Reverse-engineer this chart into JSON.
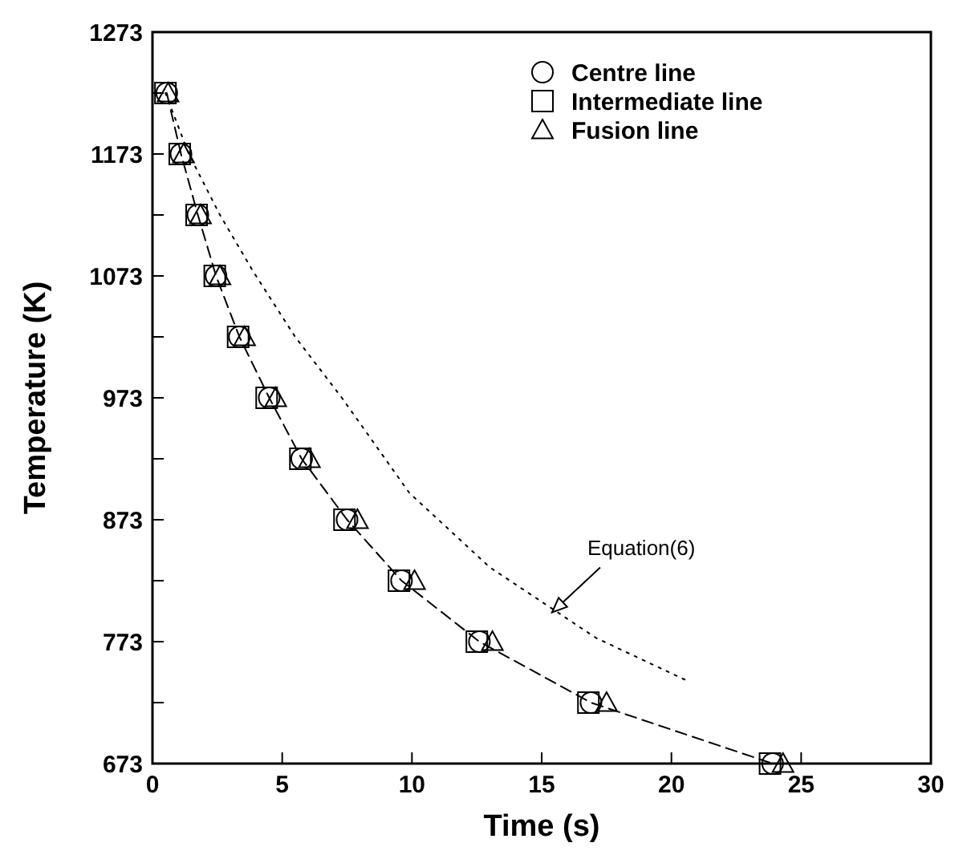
{
  "chart_data": {
    "type": "scatter",
    "xlabel": "Time (s)",
    "ylabel": "Temperature (K)",
    "xlim": [
      0,
      30
    ],
    "ylim": [
      673,
      1273
    ],
    "xticks": [
      0,
      5,
      10,
      15,
      20,
      25,
      30
    ],
    "yticks": [
      673,
      {
        "value": 723,
        "label": null
      },
      773,
      {
        "value": 823,
        "label": null
      },
      873,
      {
        "value": 923,
        "label": null
      },
      973,
      {
        "value": 1023,
        "label": null
      },
      1073,
      {
        "value": 1123,
        "label": null
      },
      1173,
      {
        "value": 1223,
        "label": null
      },
      1273
    ],
    "legend": "top right",
    "grid": false,
    "annotations": [
      {
        "text": "Equation(6)",
        "x": 15.4,
        "y": 797
      }
    ],
    "series": [
      {
        "name": "Centre line",
        "marker": "circle",
        "color": "#000000",
        "x": [
          0.55,
          1.1,
          1.75,
          2.45,
          3.35,
          4.5,
          5.75,
          7.5,
          9.6,
          12.6,
          16.9,
          23.9
        ],
        "values": [
          1223,
          1173,
          1123,
          1073,
          1023,
          973,
          923,
          873,
          823,
          773,
          723,
          673
        ]
      },
      {
        "name": "Intermediate line",
        "marker": "square",
        "color": "#000000",
        "x": [
          0.5,
          1.05,
          1.7,
          2.4,
          3.3,
          4.4,
          5.7,
          7.4,
          9.5,
          12.5,
          16.8,
          23.8
        ],
        "values": [
          1223,
          1173,
          1123,
          1073,
          1023,
          973,
          923,
          873,
          823,
          773,
          723,
          673
        ]
      },
      {
        "name": "Fusion line",
        "marker": "triangle",
        "color": "#000000",
        "x": [
          0.6,
          1.2,
          1.85,
          2.6,
          3.55,
          4.75,
          6.05,
          7.9,
          10.1,
          13.1,
          17.5,
          24.3
        ],
        "values": [
          1223,
          1173,
          1123,
          1073,
          1023,
          973,
          923,
          873,
          823,
          773,
          723,
          673
        ]
      },
      {
        "type": "line",
        "line_style": "dashed",
        "marker": "none",
        "color": "#000000",
        "x": [
          0.55,
          1.1,
          1.75,
          2.45,
          3.35,
          4.5,
          5.75,
          7.5,
          9.6,
          12.6,
          16.9,
          23.9
        ],
        "values": [
          1223,
          1173,
          1123,
          1073,
          1023,
          973,
          923,
          873,
          823,
          773,
          723,
          673
        ]
      },
      {
        "type": "line",
        "line_style": "dotted",
        "marker": "none",
        "color": "#000000",
        "x": [
          0.5,
          1.4,
          2.6,
          3.9,
          5.5,
          7.3,
          9.9,
          13,
          17.1,
          20.7
        ],
        "values": [
          1223,
          1173,
          1123,
          1076,
          1023,
          973,
          895,
          834,
          776,
          740
        ]
      }
    ]
  }
}
